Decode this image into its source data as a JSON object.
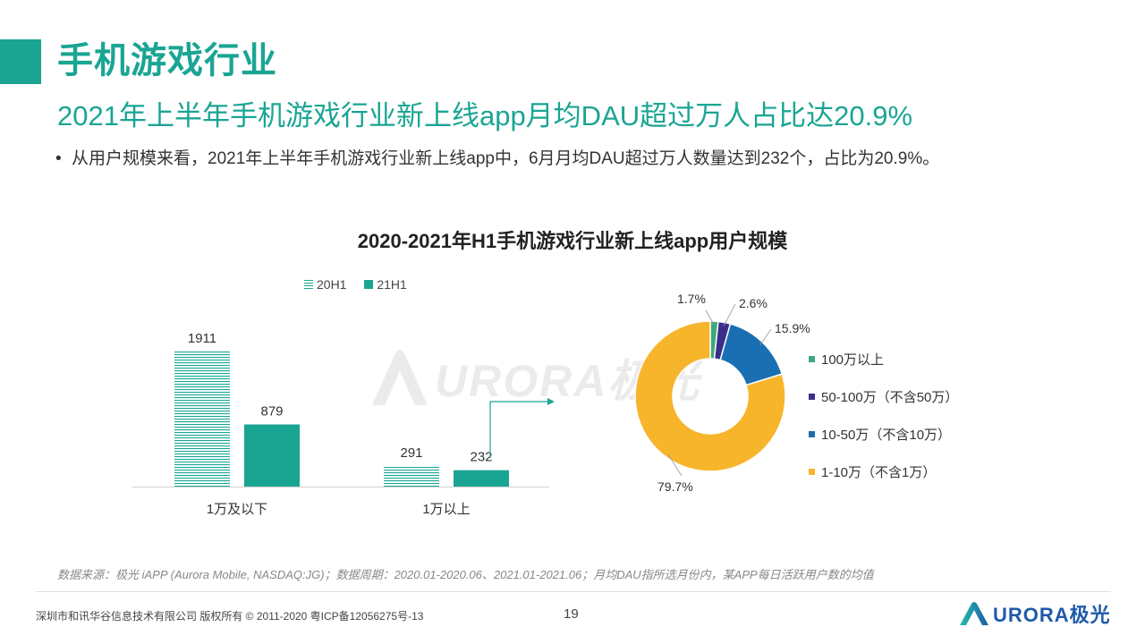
{
  "header": {
    "title": "手机游戏行业",
    "subtitle": "2021年上半年手机游戏行业新上线app月均DAU超过万人占比达20.9%",
    "bullet_marker": "•",
    "bullet": "从用户规模来看，2021年上半年手机游戏行业新上线app中，6月月均DAU超过万人数量达到232个，占比为20.9%。"
  },
  "chart_title": "2020-2021年H1手机游戏行业新上线app用户规模",
  "chart_data": [
    {
      "type": "bar",
      "categories": [
        "1万及以下",
        "1万以上"
      ],
      "series": [
        {
          "name": "20H1",
          "values": [
            1911,
            291
          ],
          "style": "striped"
        },
        {
          "name": "21H1",
          "values": [
            879,
            232
          ],
          "style": "solid"
        }
      ],
      "ylim": [
        0,
        1911
      ],
      "legend_position": "top"
    },
    {
      "type": "pie",
      "subtype": "donut",
      "labels": [
        "100万以上",
        "50-100万（不含50万）",
        "10-50万（不含10万）",
        "1-10万（不含1万）"
      ],
      "values": [
        1.7,
        2.6,
        15.9,
        79.7
      ],
      "value_labels": [
        "1.7%",
        "2.6%",
        "15.9%",
        "79.7%"
      ],
      "colors": [
        "#3aaa7a",
        "#3b2e8c",
        "#1a6fb3",
        "#f7b52c"
      ],
      "legend_position": "right"
    }
  ],
  "colors": {
    "accent": "#1aa593",
    "logo": "#1e5aa8"
  },
  "watermark": {
    "icon": "aurora-logo-icon",
    "text": "URORA极光"
  },
  "footer": {
    "source": "数据来源：极光 iAPP (Aurora Mobile, NASDAQ:JG)；数据周期：2020.01-2020.06、2021.01-2021.06；月均DAU指所选月份内，某APP每日活跃用户数的均值",
    "copyright": "深圳市和讯华谷信息技术有限公司  版权所有 © 2011-2020 粤ICP备12056275号-13",
    "page": "19",
    "logo_text": "URORA极光",
    "logo_icon": "aurora-logo-icon"
  }
}
